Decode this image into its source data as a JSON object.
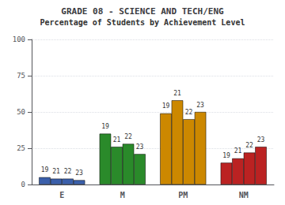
{
  "chart_data": {
    "type": "bar",
    "title": "GRADE 08 - SCIENCE AND TECH/ENG",
    "subtitle": "Percentage of Students by Achievement Level",
    "categories": [
      "E",
      "M",
      "PM",
      "NM"
    ],
    "series": [
      {
        "name": "19",
        "values": [
          5,
          35,
          49,
          15
        ],
        "colors": [
          "#3a5faa",
          "#2a8a2a",
          "#cc8800",
          "#bb2222"
        ]
      },
      {
        "name": "21",
        "values": [
          4,
          26,
          58,
          18
        ],
        "colors": [
          "#3a5faa",
          "#2a8a2a",
          "#cc8800",
          "#bb2222"
        ]
      },
      {
        "name": "22",
        "values": [
          4,
          28,
          45,
          22
        ],
        "colors": [
          "#3a5faa",
          "#2a8a2a",
          "#cc8800",
          "#bb2222"
        ]
      },
      {
        "name": "23",
        "values": [
          3,
          21,
          50,
          26
        ],
        "colors": [
          "#3a5faa",
          "#2a8a2a",
          "#cc8800",
          "#bb2222"
        ]
      }
    ],
    "ylim": [
      0,
      100
    ],
    "yticks": [
      0,
      25,
      50,
      75,
      100
    ],
    "grid": true
  }
}
